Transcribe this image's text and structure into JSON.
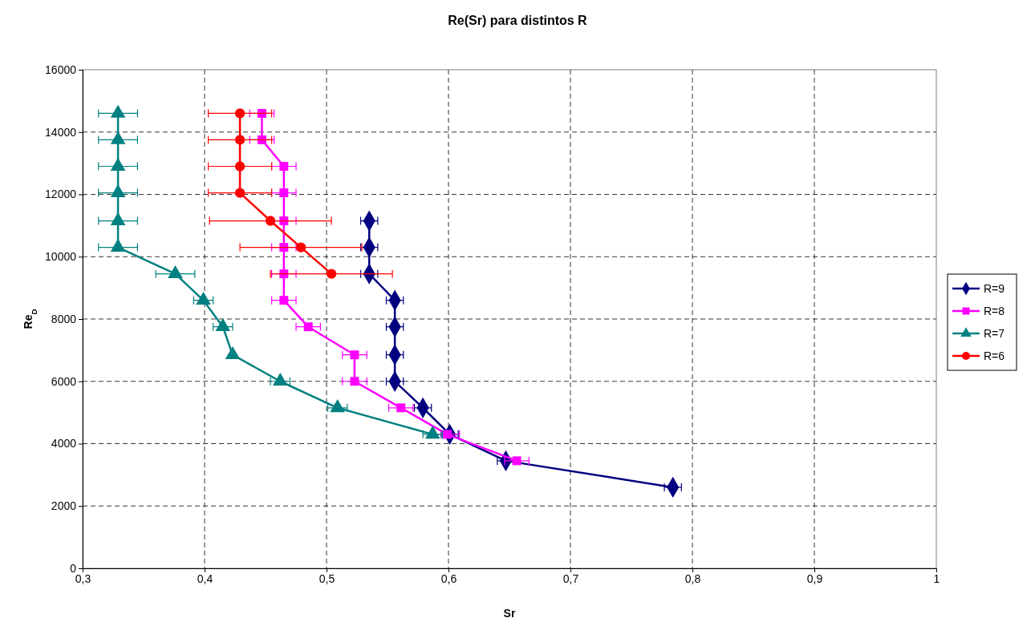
{
  "chart_data": {
    "type": "line",
    "title": "Re(Sr) para distintos R",
    "xlabel": "Sr",
    "ylabel": "Re$_{D}$",
    "xlim": [
      0.3,
      1
    ],
    "xticks": [
      {
        "value": 0.3,
        "label": "0,3"
      },
      {
        "value": 0.4,
        "label": "0,4"
      },
      {
        "value": 0.5,
        "label": "0,5"
      },
      {
        "value": 0.6,
        "label": "0,6"
      },
      {
        "value": 0.7,
        "label": "0,7"
      },
      {
        "value": 0.8,
        "label": "0,8"
      },
      {
        "value": 0.9,
        "label": "0,9"
      },
      {
        "value": 1,
        "label": "1"
      }
    ],
    "ylim": [
      0,
      16000
    ],
    "yticks": [
      0,
      2000,
      4000,
      6000,
      8000,
      10000,
      12000,
      14000,
      16000
    ],
    "grid": true,
    "legend": "right",
    "line_style": "solid",
    "series": [
      {
        "name": "R=9",
        "color": "#000080",
        "marker": "diamond",
        "x": [
          0.535,
          0.535,
          0.535,
          0.556,
          0.556,
          0.556,
          0.556,
          0.579,
          0.601,
          0.647,
          0.784
        ],
        "values": [
          11150,
          10300,
          9450,
          8600,
          7750,
          6850,
          6000,
          5150,
          4300,
          3450,
          2600
        ],
        "xerrors": [
          0.007,
          0.007,
          0.007,
          0.007,
          0.007,
          0.007,
          0.007,
          0.007,
          0.007,
          0.007,
          0.007
        ]
      },
      {
        "name": "R=8",
        "color": "#ff00ff",
        "marker": "square",
        "x": [
          0.447,
          0.447,
          0.465,
          0.465,
          0.465,
          0.465,
          0.465,
          0.465,
          0.485,
          0.523,
          0.523,
          0.561,
          0.599,
          0.656
        ],
        "values": [
          14600,
          13750,
          12900,
          12050,
          11150,
          10300,
          9450,
          8600,
          7750,
          6850,
          6000,
          5150,
          4300,
          3450
        ],
        "xerrors": [
          0.01,
          0.01,
          0.01,
          0.01,
          0.01,
          0.01,
          0.01,
          0.01,
          0.01,
          0.01,
          0.01,
          0.01,
          0.01,
          0.01
        ]
      },
      {
        "name": "R=7",
        "color": "#008080",
        "marker": "triangle",
        "x": [
          0.329,
          0.329,
          0.329,
          0.329,
          0.329,
          0.329,
          0.376,
          0.399,
          0.415,
          0.423,
          0.462,
          0.509,
          0.587
        ],
        "values": [
          14600,
          13750,
          12900,
          12050,
          11150,
          10300,
          9450,
          8600,
          7750,
          6850,
          6000,
          5150,
          4300
        ],
        "xerrors": [
          0.016,
          0.016,
          0.016,
          0.016,
          0.016,
          0.016,
          0.016,
          0.008,
          0.008,
          null,
          0.008,
          0.008,
          0.008
        ]
      },
      {
        "name": "R=6",
        "color": "#ff0000",
        "marker": "circle",
        "x": [
          0.429,
          0.429,
          0.429,
          0.429,
          0.454,
          0.479,
          0.504
        ],
        "values": [
          14600,
          13750,
          12900,
          12050,
          11150,
          10300,
          9450
        ],
        "xerrors": [
          0.026,
          0.026,
          0.026,
          0.026,
          0.05,
          0.05,
          0.05
        ]
      }
    ]
  }
}
